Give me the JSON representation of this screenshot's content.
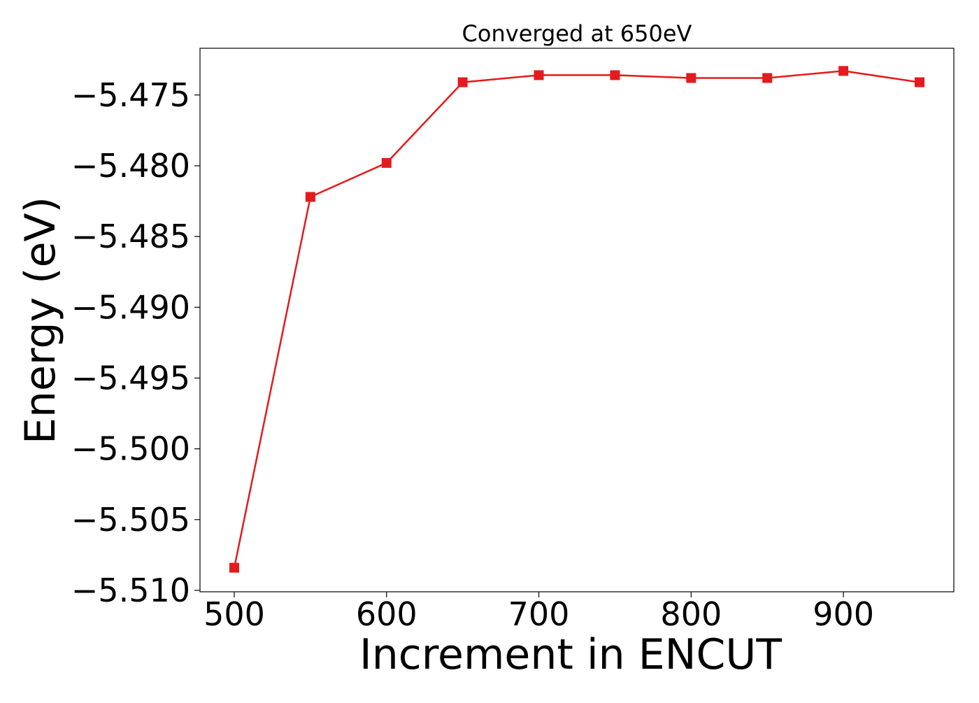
{
  "chart_data": {
    "type": "line",
    "title": "Converged at 650eV",
    "xlabel": "Increment in ENCUT",
    "ylabel": "Energy (eV)",
    "x": [
      500,
      550,
      600,
      650,
      700,
      750,
      800,
      850,
      900,
      950
    ],
    "series": [
      {
        "values": [
          -5.5084,
          -5.4822,
          -5.4798,
          -5.4741,
          -5.4736,
          -5.4736,
          -5.4738,
          -5.4738,
          -5.4733,
          -5.4741
        ],
        "color": "#e41a1c",
        "marker": "square"
      }
    ],
    "xlim": [
      477.5,
      972.5
    ],
    "ylim": [
      -5.5101,
      -5.4717
    ],
    "xticks": [
      500,
      600,
      700,
      800,
      900
    ],
    "xtick_labels": [
      "500",
      "600",
      "700",
      "800",
      "900"
    ],
    "yticks": [
      -5.475,
      -5.48,
      -5.485,
      -5.49,
      -5.495,
      -5.5,
      -5.505,
      -5.51
    ],
    "ytick_labels": [
      "−5.475",
      "−5.480",
      "−5.485",
      "−5.490",
      "−5.495",
      "−5.500",
      "−5.505",
      "−5.510"
    ],
    "grid": false,
    "legend": false
  }
}
